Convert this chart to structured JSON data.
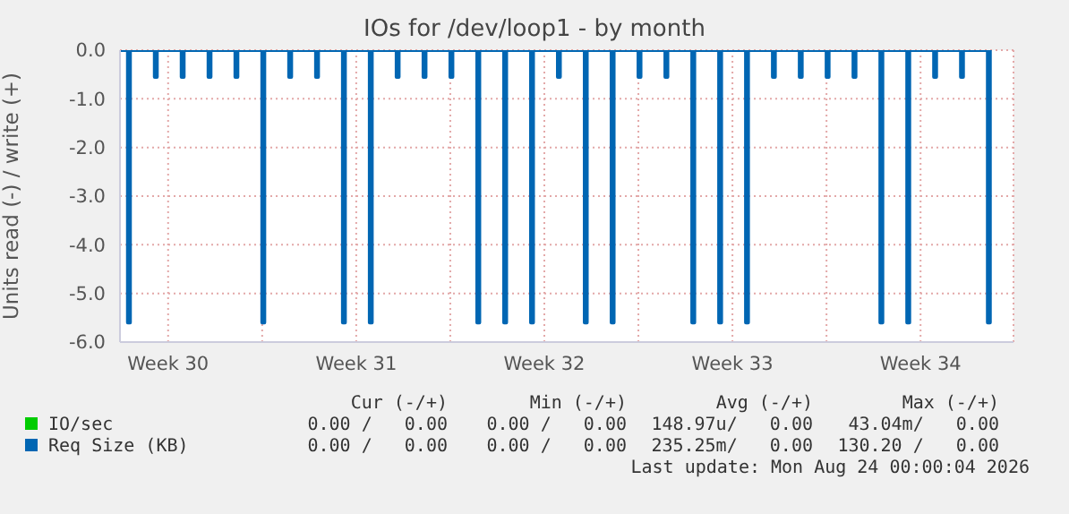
{
  "chart_data": {
    "type": "step",
    "title": "IOs for /dev/loop1 - by month",
    "ylabel": "Units read (-) / write (+)",
    "x": [
      "2026-07-21T17:00",
      "2026-07-22T00:00",
      "2026-07-22T02:00",
      "2026-07-23T00:00",
      "2026-07-23T02:00",
      "2026-07-24T00:00",
      "2026-07-24T02:00",
      "2026-07-25T00:00",
      "2026-07-25T02:00",
      "2026-07-26T00:00",
      "2026-07-26T02:00",
      "2026-07-27T00:00",
      "2026-07-27T02:00",
      "2026-07-28T00:00",
      "2026-07-28T02:00",
      "2026-07-29T00:00",
      "2026-07-29T02:00",
      "2026-07-30T00:00",
      "2026-07-30T02:00",
      "2026-07-31T00:00",
      "2026-07-31T02:00",
      "2026-08-01T00:00",
      "2026-08-01T02:00",
      "2026-08-02T00:00",
      "2026-08-02T02:00",
      "2026-08-03T00:00",
      "2026-08-03T02:00",
      "2026-08-04T00:00",
      "2026-08-04T02:00",
      "2026-08-05T00:00",
      "2026-08-05T02:00",
      "2026-08-06T00:00",
      "2026-08-06T02:00",
      "2026-08-07T00:00",
      "2026-08-07T02:00",
      "2026-08-08T00:00",
      "2026-08-08T02:00",
      "2026-08-09T00:00",
      "2026-08-09T02:00",
      "2026-08-10T00:00",
      "2026-08-10T02:00",
      "2026-08-11T00:00",
      "2026-08-11T02:00",
      "2026-08-12T00:00",
      "2026-08-12T02:00",
      "2026-08-13T00:00",
      "2026-08-13T02:00",
      "2026-08-14T00:00",
      "2026-08-14T02:00",
      "2026-08-15T00:00",
      "2026-08-15T02:00",
      "2026-08-16T00:00",
      "2026-08-16T02:00",
      "2026-08-17T00:00",
      "2026-08-17T02:00",
      "2026-08-18T00:00",
      "2026-08-18T02:00",
      "2026-08-19T00:00",
      "2026-08-19T02:00",
      "2026-08-20T00:00",
      "2026-08-20T02:00",
      "2026-08-21T00:00",
      "2026-08-21T02:00",
      "2026-08-22T00:00",
      "2026-08-22T02:00",
      "2026-08-23T00:00",
      "2026-08-23T02:00"
    ],
    "series": [
      {
        "name": "IO/sec",
        "color": "#00cc00",
        "values": [
          null,
          null,
          null,
          null,
          null,
          null,
          null,
          null,
          null,
          null,
          null,
          null,
          null,
          null,
          null,
          null,
          null,
          null,
          null,
          null,
          null,
          null,
          null,
          null,
          null,
          null,
          null,
          null,
          null,
          null,
          null,
          null,
          null,
          null,
          null,
          null,
          null,
          null,
          null,
          null,
          null,
          null,
          null,
          null,
          null,
          null,
          null,
          null,
          null,
          null,
          null,
          null,
          null,
          null,
          null,
          null,
          null,
          null,
          null,
          null,
          null,
          null,
          null,
          null,
          null,
          null,
          null
        ]
      },
      {
        "name": "Req Size (KB)",
        "color": "#0066b3",
        "values": [
          0,
          -5.6,
          0,
          -0.55,
          0,
          -0.55,
          0,
          -0.55,
          0,
          -0.55,
          0,
          -5.6,
          0,
          -0.55,
          0,
          -0.55,
          0,
          -5.6,
          0,
          -5.6,
          0,
          -0.55,
          0,
          -0.55,
          0,
          -0.55,
          0,
          -5.6,
          0,
          -5.6,
          0,
          -5.6,
          0,
          -0.55,
          0,
          -5.6,
          0,
          -5.6,
          0,
          -0.55,
          0,
          -0.55,
          0,
          -5.6,
          0,
          -5.6,
          0,
          -5.6,
          0,
          -0.55,
          0,
          -0.55,
          0,
          -0.55,
          0,
          -0.55,
          0,
          -5.6,
          0,
          -5.6,
          0,
          -0.55,
          0,
          -0.55,
          0,
          -5.6,
          0
        ]
      }
    ],
    "xlim": [
      "2026-07-21T17:00",
      "2026-08-23T23:00"
    ],
    "xticks": [
      {
        "value": "2026-07-23T12:00",
        "label": "Week 30"
      },
      {
        "value": "2026-07-27T00:00",
        "label": null
      },
      {
        "value": "2026-07-30T12:00",
        "label": "Week 31"
      },
      {
        "value": "2026-08-03T00:00",
        "label": null
      },
      {
        "value": "2026-08-06T12:00",
        "label": "Week 32"
      },
      {
        "value": "2026-08-10T00:00",
        "label": null
      },
      {
        "value": "2026-08-13T12:00",
        "label": "Week 33"
      },
      {
        "value": "2026-08-17T00:00",
        "label": null
      },
      {
        "value": "2026-08-20T12:00",
        "label": "Week 34"
      }
    ],
    "ylim": [
      -6,
      0
    ],
    "yticks": [
      {
        "value": -6,
        "label": "-6.0"
      },
      {
        "value": -5,
        "label": "-5.0"
      },
      {
        "value": -4,
        "label": "-4.0"
      },
      {
        "value": -3,
        "label": "-3.0"
      },
      {
        "value": -2,
        "label": "-2.0"
      },
      {
        "value": -1,
        "label": "-1.0"
      },
      {
        "value": 0,
        "label": "0.0"
      }
    ],
    "grid": true,
    "legend": "bottom",
    "annotations": [
      "Cur (-/+)",
      "Min (-/+)",
      "Avg (-/+)",
      "Max (-/+)",
      "0.00 /   0.00",
      "0.00 /   0.00",
      "148.97u/   0.00",
      "43.04m/   0.00",
      "0.00 /   0.00",
      "0.00 /   0.00",
      "235.25m/   0.00",
      "130.20 /   0.00",
      "Last update: Mon Aug 24 00:00:04 2026"
    ]
  }
}
